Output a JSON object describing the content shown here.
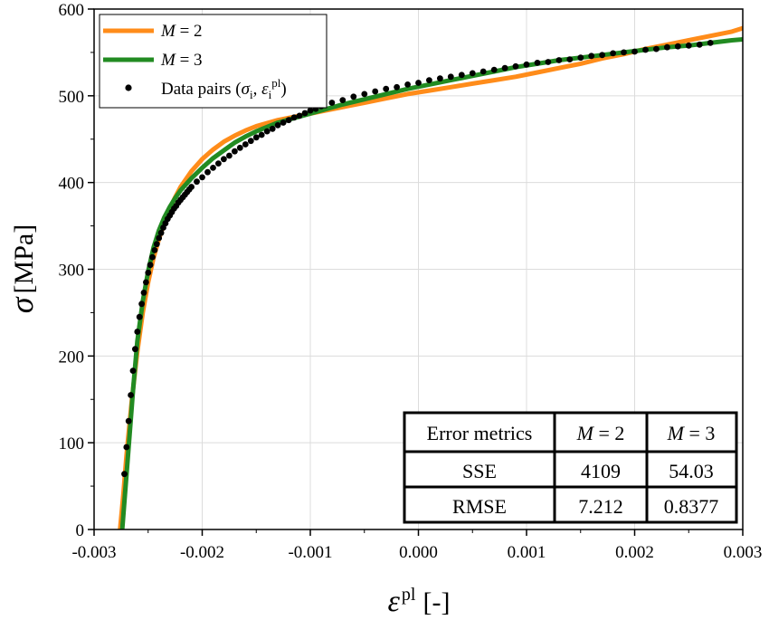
{
  "chart_data": {
    "type": "line",
    "xlabel": {
      "symbol": "ε",
      "sup": "pl",
      "unit": "[-]"
    },
    "ylabel": {
      "symbol": "σ",
      "unit": "[MPa]"
    },
    "xlim": [
      -0.003,
      0.003
    ],
    "ylim": [
      0,
      600
    ],
    "x_ticks": [
      -0.003,
      -0.002,
      -0.001,
      0.0,
      0.001,
      0.002,
      0.003
    ],
    "x_tick_labels": [
      "-0.003",
      "-0.002",
      "-0.001",
      "0.000",
      "0.001",
      "0.002",
      "0.003"
    ],
    "y_ticks": [
      0,
      100,
      200,
      300,
      400,
      500,
      600
    ],
    "y_tick_labels": [
      "0",
      "100",
      "200",
      "300",
      "400",
      "500",
      "600"
    ],
    "grid": true,
    "legend_position": "top-left",
    "series": [
      {
        "name": "M = 2",
        "kind": "line",
        "color": "#ff8c1a",
        "x": [
          -0.00276,
          -0.00273,
          -0.0027,
          -0.00265,
          -0.0026,
          -0.00255,
          -0.0025,
          -0.00245,
          -0.0024,
          -0.00235,
          -0.0023,
          -0.00225,
          -0.0022,
          -0.0021,
          -0.002,
          -0.0019,
          -0.0018,
          -0.0017,
          -0.0016,
          -0.0015,
          -0.0013,
          -0.0011,
          -0.0009,
          -0.0007,
          -0.0005,
          -0.0003,
          -0.0001,
          0.0001,
          0.0003,
          0.0005,
          0.0007,
          0.0009,
          0.0011,
          0.0013,
          0.0015,
          0.0017,
          0.0019,
          0.0021,
          0.0023,
          0.0025,
          0.0027,
          0.0029,
          0.003
        ],
        "y": [
          0,
          40,
          85,
          150,
          205,
          250,
          285,
          313,
          335,
          354,
          370,
          383,
          395,
          413,
          427,
          438,
          447,
          454,
          460,
          465,
          472,
          477,
          482,
          487,
          492,
          497,
          502,
          506,
          510,
          514,
          518,
          522,
          527,
          532,
          537,
          543,
          548,
          554,
          559,
          564,
          569,
          574,
          578
        ]
      },
      {
        "name": "M = 3",
        "kind": "line",
        "color": "#228b22",
        "x": [
          -0.00274,
          -0.00271,
          -0.00268,
          -0.00264,
          -0.0026,
          -0.00255,
          -0.0025,
          -0.00245,
          -0.0024,
          -0.00235,
          -0.0023,
          -0.00225,
          -0.0022,
          -0.0021,
          -0.002,
          -0.0019,
          -0.0018,
          -0.0017,
          -0.0016,
          -0.0015,
          -0.0013,
          -0.0011,
          -0.0009,
          -0.0007,
          -0.0005,
          -0.0003,
          -0.0001,
          0.0001,
          0.0003,
          0.0005,
          0.0007,
          0.0009,
          0.0011,
          0.0013,
          0.0015,
          0.0017,
          0.0019,
          0.0021,
          0.0023,
          0.0025,
          0.0027,
          0.0029,
          0.003
        ],
        "y": [
          0,
          48,
          95,
          160,
          217,
          263,
          298,
          325,
          345,
          360,
          372,
          382,
          391,
          405,
          417,
          428,
          437,
          446,
          453,
          459,
          469,
          476,
          483,
          490,
          496,
          502,
          508,
          513,
          518,
          523,
          528,
          533,
          537,
          541,
          544,
          547,
          550,
          553,
          556,
          558,
          561,
          564,
          565
        ]
      },
      {
        "name": "Data pairs (σi, εipl)",
        "kind": "scatter",
        "color": "#000000",
        "x": [
          -0.00272,
          -0.0027,
          -0.00268,
          -0.00266,
          -0.00264,
          -0.00262,
          -0.0026,
          -0.00258,
          -0.00256,
          -0.00254,
          -0.00252,
          -0.0025,
          -0.00248,
          -0.00246,
          -0.00244,
          -0.00242,
          -0.0024,
          -0.00238,
          -0.00236,
          -0.00234,
          -0.00232,
          -0.0023,
          -0.00228,
          -0.00226,
          -0.00224,
          -0.00222,
          -0.0022,
          -0.00218,
          -0.00216,
          -0.00214,
          -0.00212,
          -0.0021,
          -0.00205,
          -0.002,
          -0.00195,
          -0.0019,
          -0.00185,
          -0.0018,
          -0.00175,
          -0.0017,
          -0.00165,
          -0.0016,
          -0.00155,
          -0.0015,
          -0.00145,
          -0.0014,
          -0.00135,
          -0.0013,
          -0.00125,
          -0.0012,
          -0.00115,
          -0.0011,
          -0.00105,
          -0.001,
          -0.00095,
          -0.0009,
          -0.0008,
          -0.0007,
          -0.0006,
          -0.0005,
          -0.0004,
          -0.0003,
          -0.0002,
          -0.0001,
          0.0,
          0.0001,
          0.0002,
          0.0003,
          0.0004,
          0.0005,
          0.0006,
          0.0007,
          0.0008,
          0.0009,
          0.001,
          0.0011,
          0.0012,
          0.0013,
          0.0014,
          0.0015,
          0.0016,
          0.0017,
          0.0018,
          0.0019,
          0.002,
          0.0021,
          0.0022,
          0.0023,
          0.0024,
          0.0025,
          0.0026,
          0.0027
        ],
        "y": [
          64,
          95,
          125,
          155,
          183,
          208,
          228,
          245,
          260,
          273,
          285,
          296,
          305,
          314,
          322,
          329,
          336,
          342,
          348,
          353,
          358,
          362,
          366,
          370,
          373,
          377,
          380,
          383,
          386,
          389,
          392,
          395,
          401,
          406,
          412,
          417,
          422,
          427,
          431,
          436,
          440,
          444,
          448,
          452,
          455,
          459,
          462,
          466,
          469,
          472,
          475,
          477,
          480,
          483,
          485,
          488,
          492,
          495,
          499,
          502,
          505,
          508,
          510,
          513,
          515,
          518,
          520,
          522,
          524,
          526,
          528,
          530,
          532,
          534,
          536,
          538,
          539,
          541,
          542,
          544,
          546,
          547,
          549,
          550,
          551,
          553,
          554,
          556,
          557,
          558,
          559,
          561
        ]
      }
    ],
    "legend": [
      {
        "label": "M = 2",
        "kind": "line",
        "color": "#ff8c1a"
      },
      {
        "label": "M = 3",
        "kind": "line",
        "color": "#228b22"
      },
      {
        "label": "Data pairs (σi, εipl)",
        "kind": "scatter",
        "color": "#000000"
      }
    ],
    "error_table": {
      "headers": [
        "Error metrics",
        "M = 2",
        "M = 3"
      ],
      "rows": [
        [
          "SSE",
          "4109",
          "54.03"
        ],
        [
          "RMSE",
          "7.212",
          "0.8377"
        ]
      ]
    }
  }
}
